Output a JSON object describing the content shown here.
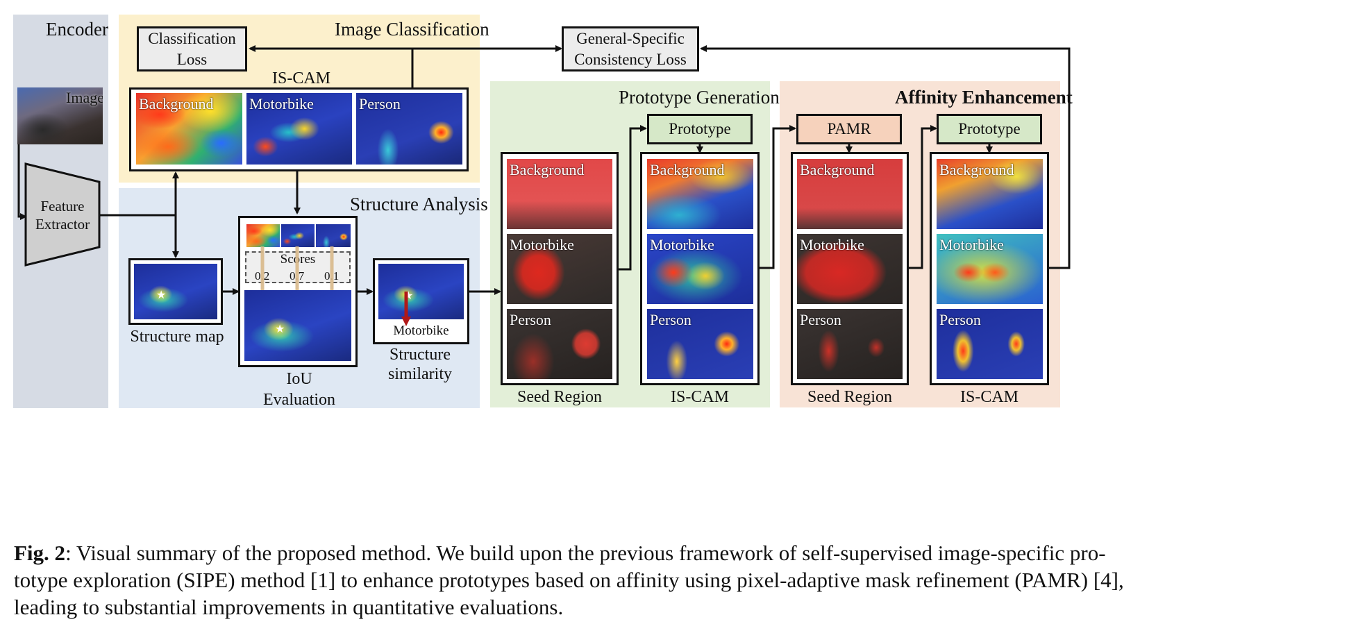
{
  "encoder": {
    "title": "Encoder",
    "image_label": "Image",
    "feature_extractor": [
      "Feature",
      "Extractor"
    ]
  },
  "image_classification": {
    "title": "Image Classification",
    "loss": [
      "Classification",
      "Loss"
    ],
    "iscam_title": "IS-CAM",
    "cams": [
      "Background",
      "Motorbike",
      "Person"
    ]
  },
  "consistency_loss": [
    "General-Specific",
    "Consistency Loss"
  ],
  "structure_analysis": {
    "title": "Structure Analysis",
    "structure_map_caption": "Structure map",
    "scores_label": "Scores",
    "scores": [
      "0.2",
      "0.7",
      "0.1"
    ],
    "iou_caption": [
      "IoU",
      "Evaluation"
    ],
    "predicted_label": "Motorbike",
    "similarity_caption": [
      "Structure",
      "similarity"
    ]
  },
  "prototype_generation": {
    "title": "Prototype Generation",
    "prototype_label": "Prototype",
    "seed_caption": "Seed Region",
    "cam_caption": "IS-CAM",
    "seed_labels": [
      "Background",
      "Motorbike",
      "Person"
    ],
    "cam_labels": [
      "Background",
      "Motorbike",
      "Person"
    ]
  },
  "affinity_enhancement": {
    "title": "Affinity Enhancement",
    "pamr_label": "PAMR",
    "prototype_label": "Prototype",
    "seed_caption": "Seed Region",
    "cam_caption": "IS-CAM",
    "seed_labels": [
      "Background",
      "Motorbike",
      "Person"
    ],
    "cam_labels": [
      "Background",
      "Motorbike",
      "Person"
    ]
  },
  "caption": {
    "fig_label": "Fig. 2",
    "line1": ": Visual summary of the proposed method. We build upon the previous framework of self-supervised image-specific pro-",
    "line2": "totype exploration (SIPE) method [1] to enhance prototypes based on affinity using pixel-adaptive mask refinement (PAMR) [4],",
    "line3": "leading to substantial improvements in quantitative evaluations."
  },
  "colors": {
    "encoder_bg": "#d6dbe4",
    "classification_bg": "#fcf0cc",
    "structure_bg": "#dfe8f3",
    "prototype_bg": "#e3efd8",
    "affinity_bg": "#f8e3d6",
    "prototype_box": "#d6e8c8",
    "pamr_box": "#f6d2bc",
    "loss_box": "#ececec",
    "score_arrow": "#d9b98a",
    "similarity_arrow": "#b01818"
  }
}
